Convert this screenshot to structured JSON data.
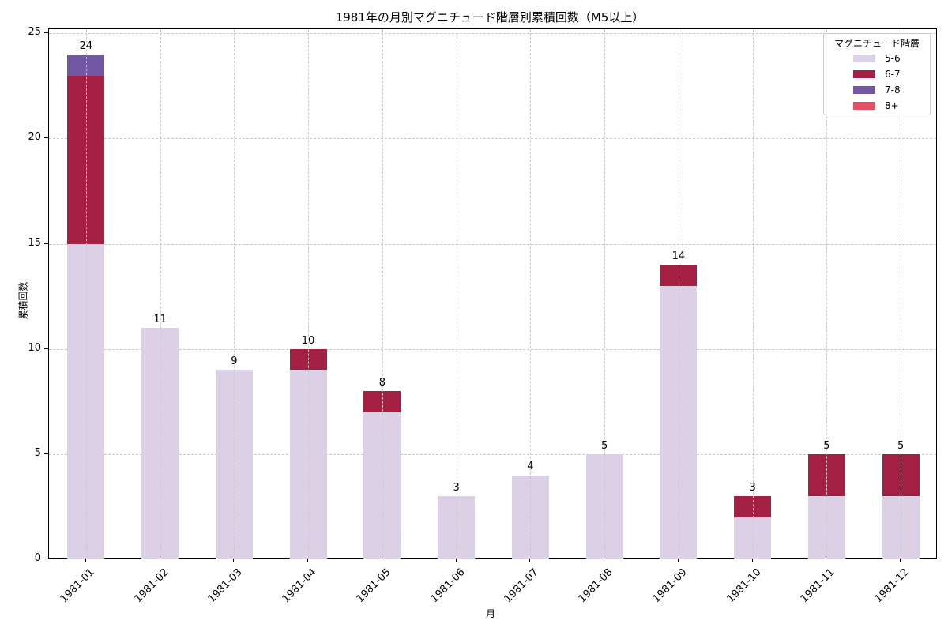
{
  "chart_data": {
    "type": "bar",
    "stacked": true,
    "title": "1981年の月別マグニチュード階層別累積回数（M5以上）",
    "xlabel": "月",
    "ylabel": "累積回数",
    "ylim": [
      0,
      25.2
    ],
    "yticks": [
      0,
      5,
      10,
      15,
      20,
      25
    ],
    "grid": true,
    "legend_position": "upper right",
    "legend_title": "マグニチュード階層",
    "categories": [
      "1981-01",
      "1981-02",
      "1981-03",
      "1981-04",
      "1981-05",
      "1981-06",
      "1981-07",
      "1981-08",
      "1981-09",
      "1981-10",
      "1981-11",
      "1981-12"
    ],
    "series": [
      {
        "name": "5-6",
        "color": "#dcd0e6",
        "values": [
          15,
          11,
          9,
          9,
          7,
          3,
          4,
          5,
          13,
          2,
          3,
          3
        ]
      },
      {
        "name": "6-7",
        "color": "#a31f44",
        "values": [
          8,
          0,
          0,
          1,
          1,
          0,
          0,
          0,
          1,
          1,
          2,
          2
        ]
      },
      {
        "name": "7-8",
        "color": "#7258a3",
        "values": [
          1,
          0,
          0,
          0,
          0,
          0,
          0,
          0,
          0,
          0,
          0,
          0
        ]
      },
      {
        "name": "8+",
        "color": "#e35365",
        "values": [
          0,
          0,
          0,
          0,
          0,
          0,
          0,
          0,
          0,
          0,
          0,
          0
        ]
      }
    ],
    "totals": [
      24,
      11,
      9,
      10,
      8,
      3,
      4,
      5,
      14,
      3,
      5,
      5
    ]
  }
}
